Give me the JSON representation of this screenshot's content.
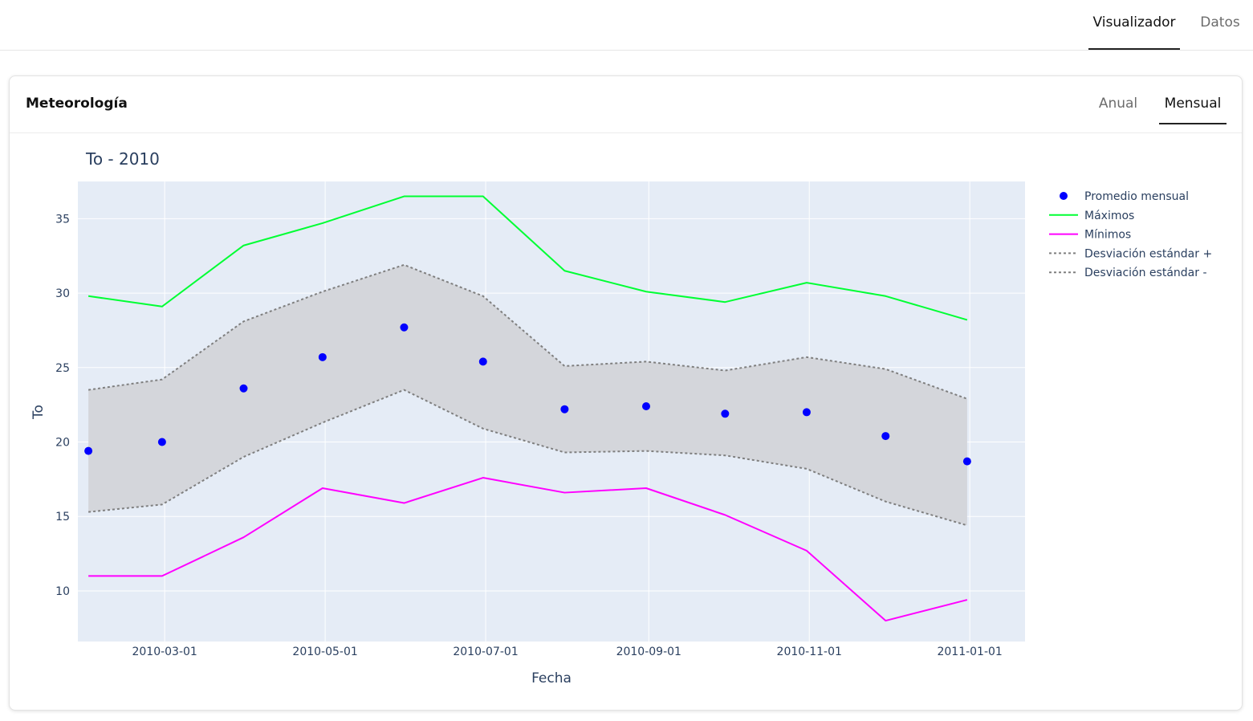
{
  "nav": {
    "tabs": [
      {
        "label": "Visualizador",
        "active": true
      },
      {
        "label": "Datos",
        "active": false
      }
    ]
  },
  "card": {
    "title": "Meteorología",
    "tabs": [
      {
        "label": "Anual",
        "active": false
      },
      {
        "label": "Mensual",
        "active": true
      }
    ]
  },
  "chart_data": {
    "type": "line",
    "title": "To - 2010",
    "xlabel": "Fecha",
    "ylabel": "To",
    "x": [
      "2010-01-31",
      "2010-02-28",
      "2010-03-31",
      "2010-04-30",
      "2010-05-31",
      "2010-06-30",
      "2010-07-31",
      "2010-08-31",
      "2010-09-30",
      "2010-10-31",
      "2010-11-30",
      "2010-12-31"
    ],
    "xlim": [
      "2010-01-27",
      "2011-01-22"
    ],
    "ylim": [
      6.6,
      37.5
    ],
    "xticks": [
      "2010-03-01",
      "2010-05-01",
      "2010-07-01",
      "2010-09-01",
      "2010-11-01",
      "2011-01-01"
    ],
    "yticks": [
      10,
      15,
      20,
      25,
      30,
      35
    ],
    "grid": true,
    "legend_position": "right",
    "fill_between": [
      "Desviación estándar +",
      "Desviación estándar -"
    ],
    "fill_color": "#d4d6db",
    "plot_bg": "#e5ecf6",
    "series": [
      {
        "name": "Promedio mensual",
        "mode": "markers",
        "color": "#0000ff",
        "values": [
          19.4,
          20.0,
          23.6,
          25.7,
          27.7,
          25.4,
          22.2,
          22.4,
          21.9,
          22.0,
          20.4,
          18.7
        ]
      },
      {
        "name": "Máximos",
        "mode": "line",
        "color": "#00ff33",
        "values": [
          29.8,
          29.1,
          33.2,
          34.7,
          36.5,
          36.5,
          31.5,
          30.1,
          29.4,
          30.7,
          29.8,
          28.2
        ]
      },
      {
        "name": "Mínimos",
        "mode": "line",
        "color": "#ff00ff",
        "values": [
          11.0,
          11.0,
          13.6,
          16.9,
          15.9,
          17.6,
          16.6,
          16.9,
          15.1,
          12.7,
          8.0,
          9.4
        ]
      },
      {
        "name": "Desviación estándar +",
        "mode": "dotted",
        "color": "#7f7f7f",
        "values": [
          23.5,
          24.2,
          28.1,
          30.1,
          31.9,
          29.8,
          25.1,
          25.4,
          24.8,
          25.7,
          24.9,
          22.9
        ]
      },
      {
        "name": "Desviación estándar -",
        "mode": "dotted",
        "color": "#7f7f7f",
        "values": [
          15.3,
          15.8,
          19.0,
          21.3,
          23.5,
          20.9,
          19.3,
          19.4,
          19.1,
          18.2,
          16.0,
          14.4
        ]
      }
    ]
  }
}
